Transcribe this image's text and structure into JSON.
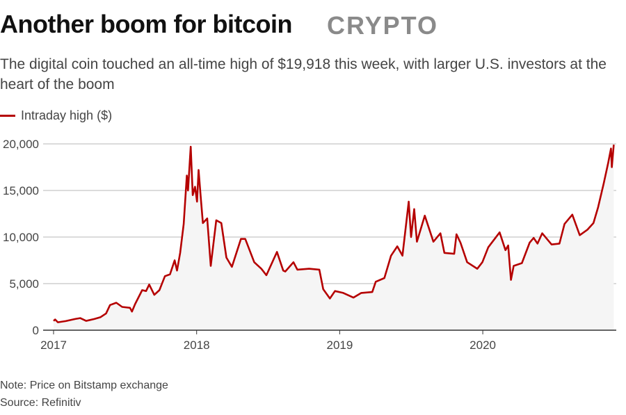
{
  "watermark": "CRYPTO",
  "title": "Another boom for bitcoin",
  "subtitle": "The digital coin touched an all-time high of $19,918 this week, with larger U.S. investors at the heart of the boom",
  "note": "Note: Price on Bitstamp exchange",
  "source": "Source: Refinitiv",
  "chart_data": {
    "type": "area",
    "title": "Another boom for bitcoin",
    "series": [
      {
        "name": "Intraday high ($)",
        "color": "#b50000"
      }
    ],
    "ylim": [
      0,
      20000
    ],
    "yticks": [
      0,
      5000,
      10000,
      15000,
      20000
    ],
    "ytick_labels": [
      "0",
      "5,000",
      "10,000",
      "15,000",
      "20,000"
    ],
    "xticks": [
      "2017",
      "2018",
      "2019",
      "2020"
    ],
    "xlim": [
      "2017-01-01",
      "2020-12-02"
    ],
    "grid": "horizontal",
    "legend": "top-left",
    "fill_color": "#f5f5f5",
    "points": [
      [
        "2017-01-01",
        1000
      ],
      [
        "2017-01-05",
        1150
      ],
      [
        "2017-01-12",
        850
      ],
      [
        "2017-02-01",
        980
      ],
      [
        "2017-02-25",
        1200
      ],
      [
        "2017-03-10",
        1300
      ],
      [
        "2017-03-25",
        1000
      ],
      [
        "2017-04-15",
        1200
      ],
      [
        "2017-05-01",
        1400
      ],
      [
        "2017-05-15",
        1800
      ],
      [
        "2017-05-25",
        2700
      ],
      [
        "2017-06-10",
        2950
      ],
      [
        "2017-06-25",
        2500
      ],
      [
        "2017-07-15",
        2400
      ],
      [
        "2017-07-20",
        2000
      ],
      [
        "2017-07-28",
        2800
      ],
      [
        "2017-08-15",
        4300
      ],
      [
        "2017-08-25",
        4200
      ],
      [
        "2017-09-02",
        4900
      ],
      [
        "2017-09-15",
        3800
      ],
      [
        "2017-09-28",
        4300
      ],
      [
        "2017-10-12",
        5800
      ],
      [
        "2017-10-25",
        6000
      ],
      [
        "2017-11-06",
        7500
      ],
      [
        "2017-11-12",
        6400
      ],
      [
        "2017-11-20",
        8300
      ],
      [
        "2017-11-29",
        11400
      ],
      [
        "2017-12-07",
        16600
      ],
      [
        "2017-12-10",
        15000
      ],
      [
        "2017-12-17",
        19700
      ],
      [
        "2017-12-22",
        14500
      ],
      [
        "2017-12-28",
        15400
      ],
      [
        "2018-01-02",
        13800
      ],
      [
        "2018-01-06",
        17200
      ],
      [
        "2018-01-12",
        14000
      ],
      [
        "2018-01-17",
        11500
      ],
      [
        "2018-01-28",
        12000
      ],
      [
        "2018-02-06",
        6900
      ],
      [
        "2018-02-20",
        11800
      ],
      [
        "2018-03-05",
        11500
      ],
      [
        "2018-03-18",
        7800
      ],
      [
        "2018-04-01",
        6800
      ],
      [
        "2018-04-24",
        9800
      ],
      [
        "2018-05-05",
        9800
      ],
      [
        "2018-05-28",
        7300
      ],
      [
        "2018-06-15",
        6600
      ],
      [
        "2018-06-28",
        5900
      ],
      [
        "2018-07-25",
        8400
      ],
      [
        "2018-08-10",
        6400
      ],
      [
        "2018-08-15",
        6300
      ],
      [
        "2018-09-05",
        7300
      ],
      [
        "2018-09-15",
        6500
      ],
      [
        "2018-10-15",
        6600
      ],
      [
        "2018-11-10",
        6500
      ],
      [
        "2018-11-20",
        4400
      ],
      [
        "2018-12-07",
        3400
      ],
      [
        "2018-12-20",
        4200
      ],
      [
        "2019-01-10",
        4000
      ],
      [
        "2019-02-05",
        3500
      ],
      [
        "2019-02-25",
        4000
      ],
      [
        "2019-03-25",
        4100
      ],
      [
        "2019-04-03",
        5200
      ],
      [
        "2019-04-25",
        5600
      ],
      [
        "2019-05-12",
        8000
      ],
      [
        "2019-05-28",
        9000
      ],
      [
        "2019-06-10",
        8000
      ],
      [
        "2019-06-26",
        13800
      ],
      [
        "2019-07-02",
        10000
      ],
      [
        "2019-07-10",
        13000
      ],
      [
        "2019-07-17",
        9500
      ],
      [
        "2019-08-06",
        12300
      ],
      [
        "2019-08-28",
        9500
      ],
      [
        "2019-09-15",
        10400
      ],
      [
        "2019-09-25",
        8300
      ],
      [
        "2019-10-20",
        8200
      ],
      [
        "2019-10-26",
        10300
      ],
      [
        "2019-11-05",
        9400
      ],
      [
        "2019-11-22",
        7300
      ],
      [
        "2019-12-18",
        6600
      ],
      [
        "2019-12-31",
        7300
      ],
      [
        "2020-01-15",
        8900
      ],
      [
        "2020-02-13",
        10500
      ],
      [
        "2020-02-28",
        8600
      ],
      [
        "2020-03-06",
        9100
      ],
      [
        "2020-03-13",
        5400
      ],
      [
        "2020-03-20",
        6900
      ],
      [
        "2020-04-10",
        7200
      ],
      [
        "2020-04-30",
        9400
      ],
      [
        "2020-05-10",
        9900
      ],
      [
        "2020-05-20",
        9300
      ],
      [
        "2020-06-01",
        10400
      ],
      [
        "2020-06-25",
        9200
      ],
      [
        "2020-07-15",
        9300
      ],
      [
        "2020-07-28",
        11400
      ],
      [
        "2020-08-17",
        12400
      ],
      [
        "2020-09-05",
        10200
      ],
      [
        "2020-09-25",
        10800
      ],
      [
        "2020-10-10",
        11500
      ],
      [
        "2020-10-22",
        13200
      ],
      [
        "2020-11-05",
        15700
      ],
      [
        "2020-11-17",
        18000
      ],
      [
        "2020-11-24",
        19500
      ],
      [
        "2020-11-26",
        17500
      ],
      [
        "2020-12-01",
        19918
      ]
    ]
  }
}
